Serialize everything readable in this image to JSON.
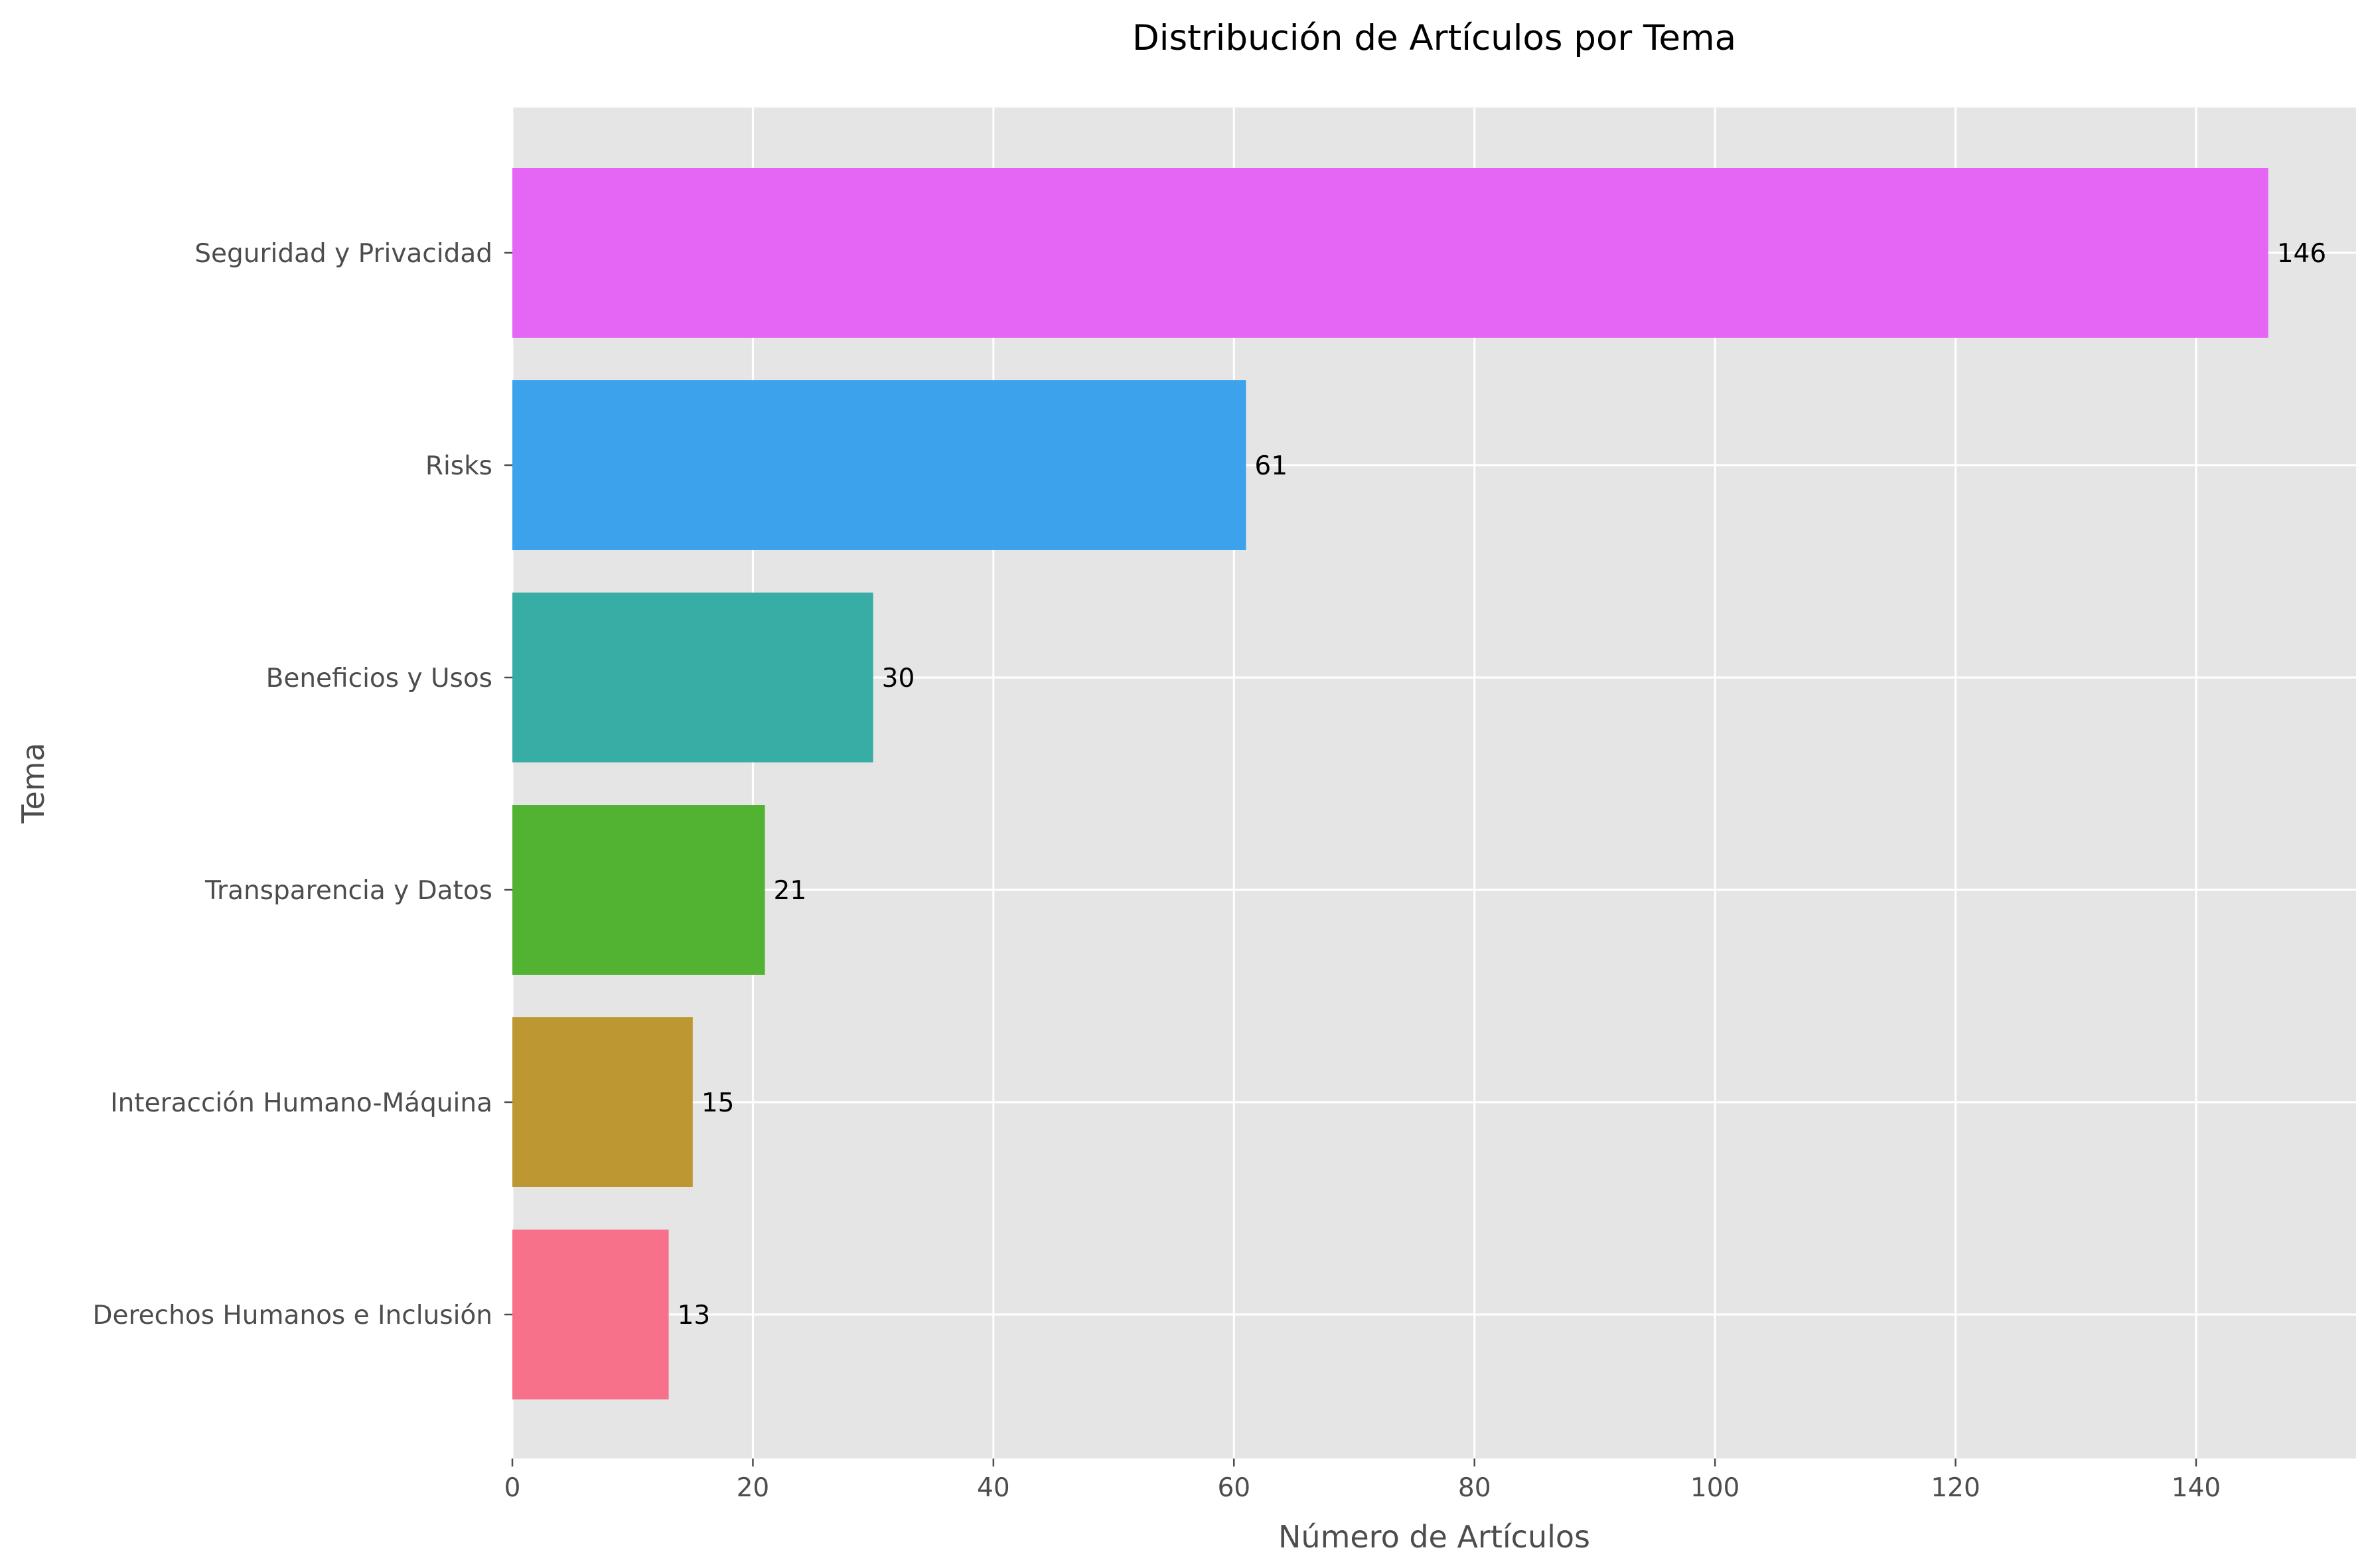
{
  "chart_data": {
    "type": "bar",
    "orientation": "horizontal",
    "title": "Distribución de Artículos por Tema",
    "xlabel": "Número de Artículos",
    "ylabel": "Tema",
    "categories": [
      "Seguridad y Privacidad",
      "Risks",
      "Beneficios y Usos",
      "Transparencia y Datos",
      "Interacción Humano-Máquina",
      "Derechos Humanos e Inclusión"
    ],
    "values": [
      146,
      61,
      30,
      21,
      15,
      13
    ],
    "value_labels": [
      "146",
      "61",
      "30",
      "21",
      "15",
      "13"
    ],
    "colors": [
      "#e566f5",
      "#3ca2ec",
      "#38ada5",
      "#52b332",
      "#bc9732",
      "#f7718a"
    ],
    "xlim": [
      0,
      153.3
    ],
    "xticks": [
      0,
      20,
      40,
      60,
      80,
      100,
      120,
      140
    ],
    "xtick_labels": [
      "0",
      "20",
      "40",
      "60",
      "80",
      "100",
      "120",
      "140"
    ],
    "grid": true,
    "legend": "none",
    "background": "#e5e5e5",
    "gridline_color": "#ffffff"
  }
}
